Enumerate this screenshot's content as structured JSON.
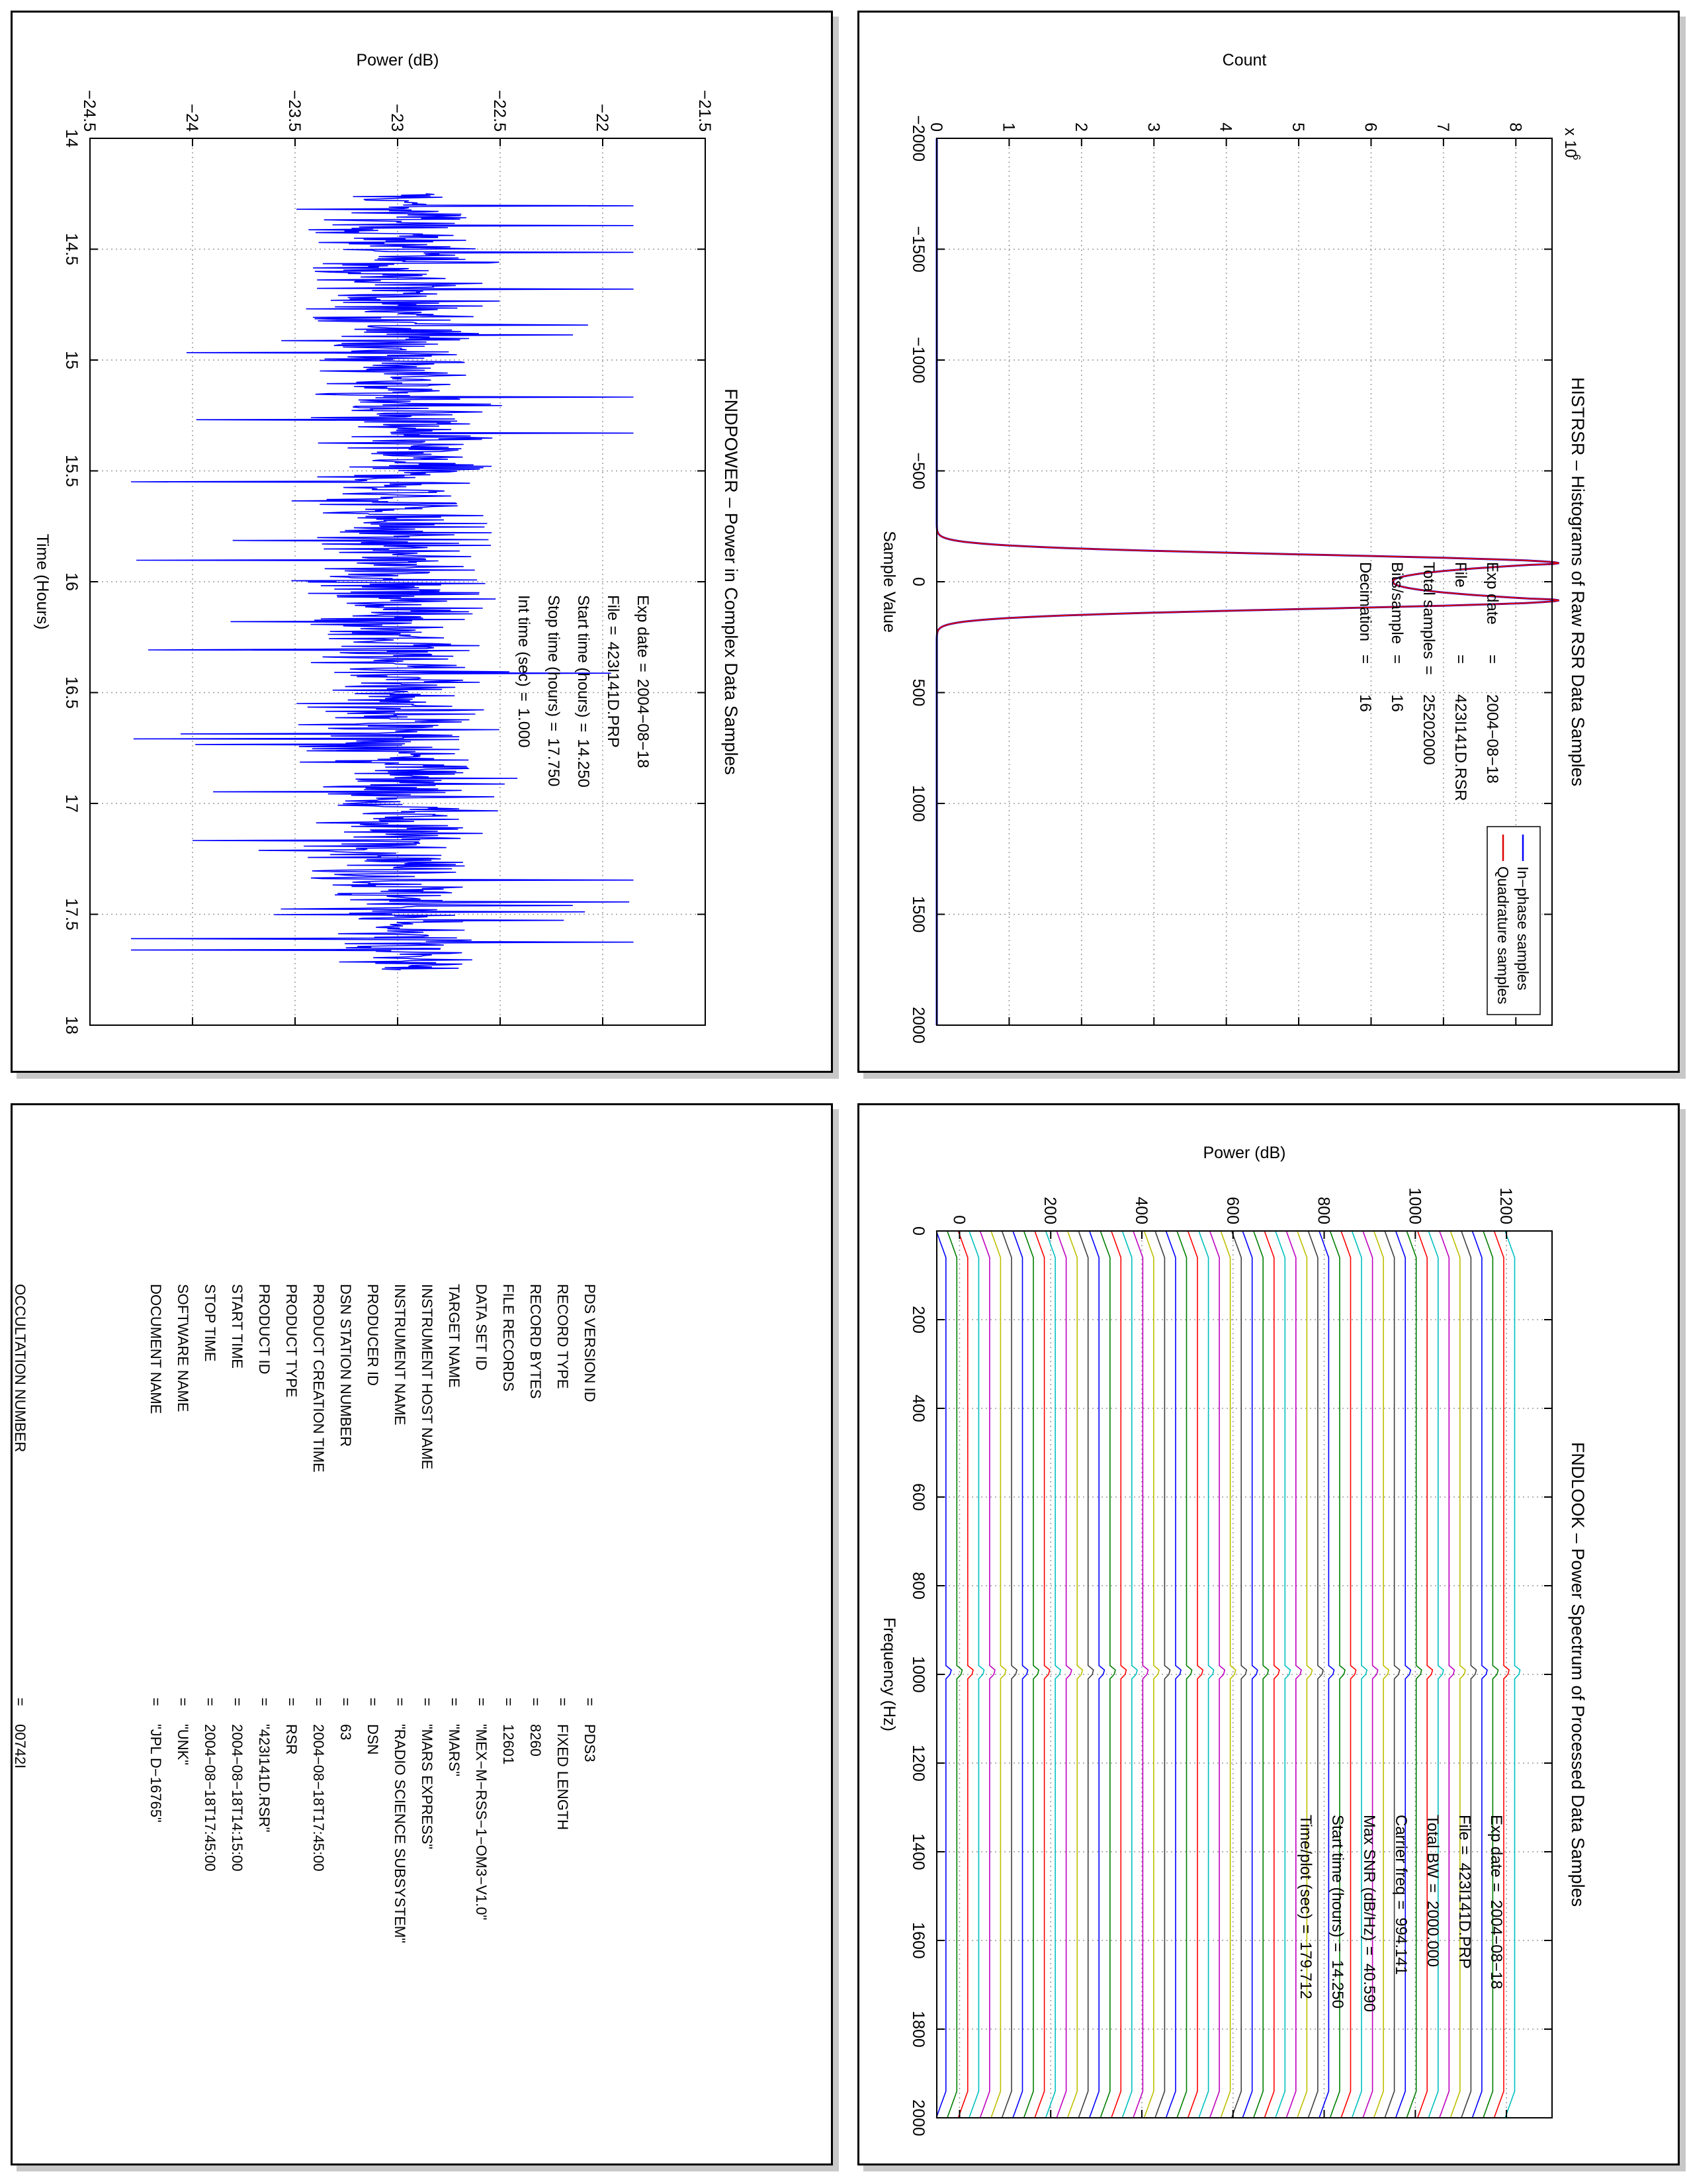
{
  "chart_data": [
    {
      "id": "fndpower",
      "type": "line",
      "title": "FNDPOWER – Power in Complex Data Samples",
      "xlabel": "Time (Hours)",
      "ylabel": "Power (dB)",
      "xlim": [
        14,
        18
      ],
      "ylim": [
        -24.5,
        -21.5
      ],
      "xticks": [
        "14",
        "14.5",
        "15",
        "15.5",
        "16",
        "16.5",
        "17",
        "17.5",
        "18"
      ],
      "yticks": [
        "−24.5",
        "−24",
        "−23.5",
        "−23",
        "−22.5",
        "−22",
        "−21.5"
      ],
      "grid": true,
      "series": [
        {
          "color": "#0000ff",
          "x_start": 14.25,
          "x_end": 17.75,
          "mean": -23.0,
          "typical_range": [
            -23.5,
            -22.5
          ],
          "extreme_range": [
            -24.3,
            -21.85
          ]
        }
      ],
      "annotations": [
        {
          "key": "Exp date",
          "eq": "=",
          "val": "2004−08−18"
        },
        {
          "key": "File",
          "eq": "=",
          "val": "423I141D.PRP"
        },
        {
          "key": "Start time (hours)",
          "eq": "=",
          "val": "14.250"
        },
        {
          "key": "Stop time (hours)",
          "eq": "=",
          "val": "17.750"
        },
        {
          "key": "Int time (sec)",
          "eq": "=",
          "val": "1.000"
        }
      ]
    },
    {
      "id": "histrsr",
      "type": "line",
      "title": "HISTRSR – Histograms of Raw RSR Data Samples",
      "xlabel": "Sample Value",
      "ylabel": "Count",
      "y_multiplier": "x 10",
      "y_exponent": "6",
      "xlim": [
        -2000,
        2000
      ],
      "ylim": [
        0,
        8.5
      ],
      "xticks": [
        "−2000",
        "−1500",
        "−1000",
        "−500",
        "0",
        "500",
        "1000",
        "1500",
        "2000"
      ],
      "yticks": [
        "0",
        "1",
        "2",
        "3",
        "4",
        "5",
        "6",
        "7",
        "8"
      ],
      "grid": true,
      "legend": "top-right",
      "series": [
        {
          "name": "In−phase samples",
          "color": "#0000ff",
          "peaks": [
            {
              "x": -83,
              "y": 8.6
            },
            {
              "x": 83,
              "y": 8.6
            }
          ],
          "center_dip": 6.3,
          "zero_beyond": 260
        },
        {
          "name": "Quadrature samples",
          "color": "#dd0000",
          "peaks": [
            {
              "x": -83,
              "y": 8.6
            },
            {
              "x": 83,
              "y": 8.6
            }
          ],
          "center_dip": 6.3,
          "zero_beyond": 260
        }
      ],
      "annotations": [
        {
          "key": "Exp date",
          "eq": "=",
          "val": "2004−08−18"
        },
        {
          "key": "File",
          "eq": "=",
          "val": "423I141D.RSR"
        },
        {
          "key": "Total samples",
          "eq": "=",
          "val": "25202000"
        },
        {
          "key": "Bits/sample",
          "eq": "=",
          "val": "16"
        },
        {
          "key": "Decimation",
          "eq": "=",
          "val": "16"
        }
      ]
    },
    {
      "id": "fndlook",
      "type": "line",
      "title": "FNDLOOK – Power Spectrum of Processed Data Samples",
      "xlabel": "Frequency (Hz)",
      "ylabel": "Power (dB)",
      "xlim": [
        0,
        2000
      ],
      "ylim": [
        -50,
        1300
      ],
      "xticks": [
        "0",
        "200",
        "400",
        "600",
        "800",
        "1000",
        "1200",
        "1400",
        "1600",
        "1800",
        "2000"
      ],
      "yticks": [
        "0",
        "200",
        "400",
        "600",
        "800",
        "1000",
        "1200"
      ],
      "grid": true,
      "stacked_traces": {
        "count": 53,
        "offset_db": 24,
        "carrier_hz": 994.141,
        "colors": [
          "#0000ff",
          "#008000",
          "#ff0000",
          "#00bfbf",
          "#bf00bf",
          "#bfbf00",
          "#404040"
        ]
      },
      "annotations": [
        {
          "key": "Exp date",
          "eq": "=",
          "val": "2004−08−18"
        },
        {
          "key": "File",
          "eq": "=",
          "val": "423I141D.PRP"
        },
        {
          "key": "Total BW",
          "eq": "=",
          "val": "2000.000"
        },
        {
          "key": "Carrier freq",
          "eq": "=",
          "val": "994.141"
        },
        {
          "key": "Max SNR (dB/Hz)",
          "eq": "=",
          "val": "40.590"
        },
        {
          "key": "Start time (hours)",
          "eq": "=",
          "val": "14.250"
        },
        {
          "key": "Time/plot (sec)",
          "eq": "=",
          "val": "179.712"
        }
      ]
    }
  ],
  "label": {
    "rows": [
      {
        "key": "PDS VERSION ID",
        "eq": "=",
        "val": "PDS3"
      },
      {
        "key": "RECORD TYPE",
        "eq": "=",
        "val": "FIXED LENGTH"
      },
      {
        "key": "RECORD BYTES",
        "eq": "=",
        "val": "8260"
      },
      {
        "key": "FILE RECORDS",
        "eq": "=",
        "val": "12601"
      },
      {
        "key": "DATA SET ID",
        "eq": "=",
        "val": "\"MEX−M−RSS−1−OM3−V1.0\""
      },
      {
        "key": "TARGET NAME",
        "eq": "=",
        "val": "\"MARS\""
      },
      {
        "key": "INSTRUMENT HOST NAME",
        "eq": "=",
        "val": "\"MARS EXPRESS\""
      },
      {
        "key": "INSTRUMENT NAME",
        "eq": "=",
        "val": "\"RADIO SCIENCE SUBSYSTEM\""
      },
      {
        "key": "PRODUCER ID",
        "eq": "=",
        "val": "DSN"
      },
      {
        "key": "DSN STATION NUMBER",
        "eq": "=",
        "val": "63"
      },
      {
        "key": "PRODUCT CREATION TIME",
        "eq": "=",
        "val": "2004−08−18T17:45:00"
      },
      {
        "key": "PRODUCT TYPE",
        "eq": "=",
        "val": "RSR"
      },
      {
        "key": "PRODUCT ID",
        "eq": "=",
        "val": "\"423I141D.RSR\""
      },
      {
        "key": "START TIME",
        "eq": "=",
        "val": "2004−08−18T14:15:00"
      },
      {
        "key": "STOP TIME",
        "eq": "=",
        "val": "2004−08−18T17:45:00"
      },
      {
        "key": "SOFTWARE NAME",
        "eq": "=",
        "val": "\"UNK\""
      },
      {
        "key": "DOCUMENT NAME",
        "eq": "=",
        "val": "\"JPL D−16765\""
      },
      {
        "key": "",
        "eq": "",
        "val": ""
      },
      {
        "key": "",
        "eq": "",
        "val": ""
      },
      {
        "key": "",
        "eq": "",
        "val": ""
      },
      {
        "key": "",
        "eq": "",
        "val": ""
      },
      {
        "key": "OCCULTATION NUMBER",
        "eq": "=",
        "val": "00742I"
      }
    ]
  }
}
